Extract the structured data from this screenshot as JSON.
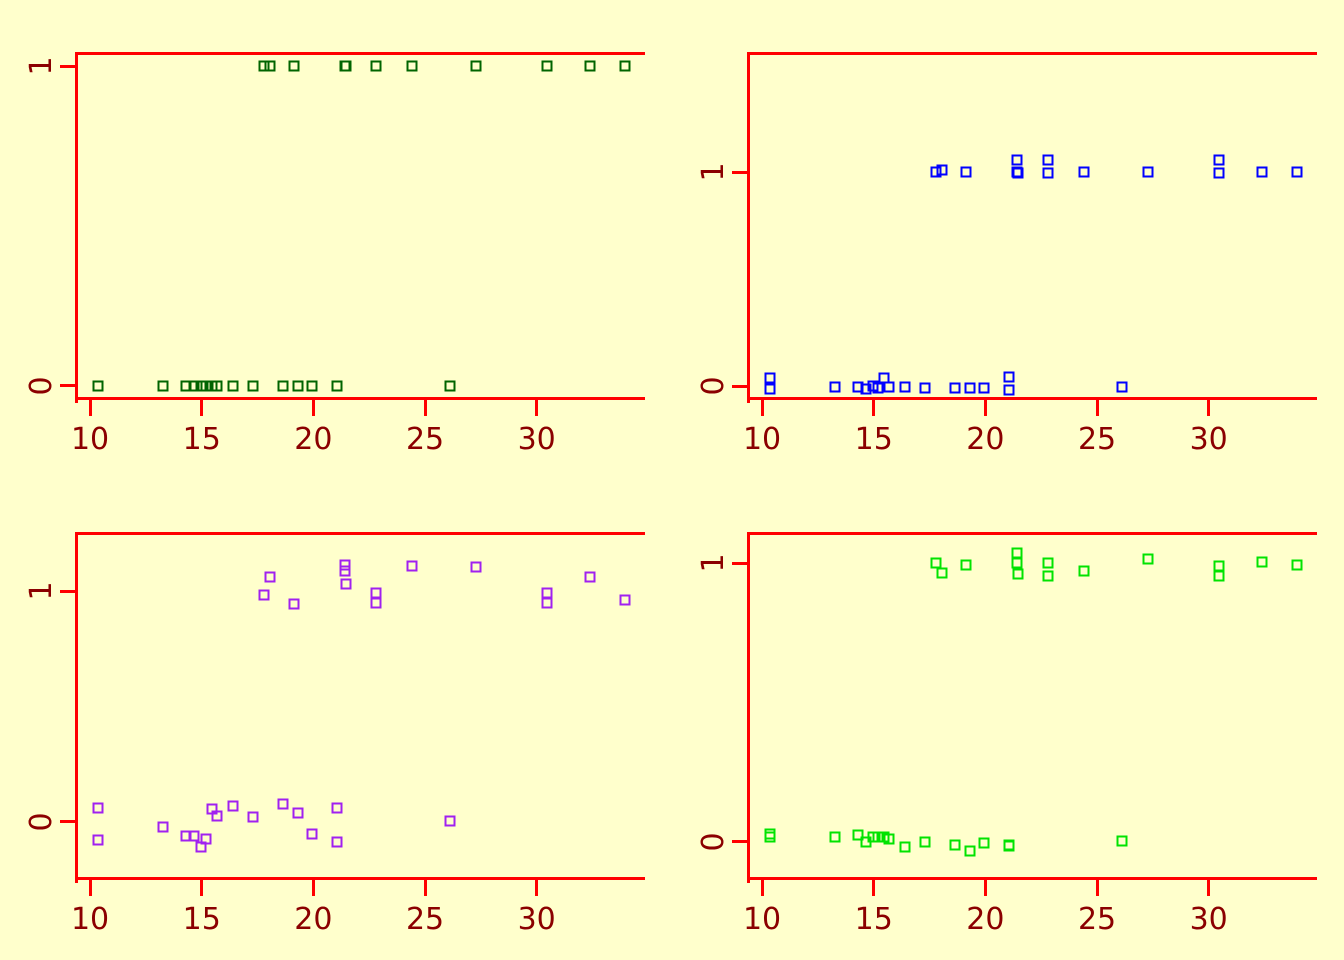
{
  "figure": {
    "background": "#FFFFCC",
    "axis_color": "#FF0000",
    "tick_label_color": "#8B0000",
    "layout": "2x2 grid of scatter panels, no titles, no legend"
  },
  "chart_data": [
    {
      "panel": "top-left",
      "type": "scatter",
      "marker": "open-square",
      "point_color": "#006400",
      "jitter": "none",
      "x_ticks": [
        10,
        15,
        20,
        25,
        30
      ],
      "y_ticks": [
        0,
        1
      ],
      "xlim": [
        9.46,
        34.85
      ],
      "ylim": [
        -0.044,
        1.044
      ],
      "grid": false,
      "points": [
        [
          10.36,
          0
        ],
        [
          10.36,
          0
        ],
        [
          13.25,
          0
        ],
        [
          14.3,
          0
        ],
        [
          14.65,
          0
        ],
        [
          14.95,
          0
        ],
        [
          15.2,
          0
        ],
        [
          15.45,
          0
        ],
        [
          15.7,
          0
        ],
        [
          16.4,
          0
        ],
        [
          17.3,
          0
        ],
        [
          18.65,
          0
        ],
        [
          19.3,
          0
        ],
        [
          19.95,
          0
        ],
        [
          21.05,
          0
        ],
        [
          21.05,
          0
        ],
        [
          26.1,
          0
        ],
        [
          17.8,
          1
        ],
        [
          18.05,
          1
        ],
        [
          19.15,
          1
        ],
        [
          21.4,
          1
        ],
        [
          21.4,
          1
        ],
        [
          21.45,
          1
        ],
        [
          22.8,
          1
        ],
        [
          22.8,
          1
        ],
        [
          24.4,
          1
        ],
        [
          27.3,
          1
        ],
        [
          30.45,
          1
        ],
        [
          30.45,
          1
        ],
        [
          32.4,
          1
        ],
        [
          33.95,
          1
        ]
      ]
    },
    {
      "panel": "top-right",
      "type": "scatter",
      "marker": "open-square",
      "point_color": "#0000FF",
      "jitter": "small-y",
      "x_ticks": [
        10,
        15,
        20,
        25,
        30
      ],
      "y_ticks": [
        0,
        1
      ],
      "xlim": [
        9.46,
        34.85
      ],
      "ylim": [
        -0.065,
        1.561
      ],
      "grid": false,
      "points": [
        [
          10.36,
          0.04
        ],
        [
          10.36,
          -0.015
        ],
        [
          13.25,
          -0.005
        ],
        [
          14.3,
          -0.005
        ],
        [
          14.65,
          -0.012
        ],
        [
          14.95,
          0.0
        ],
        [
          15.2,
          -0.01
        ],
        [
          15.45,
          0.04
        ],
        [
          15.7,
          -0.005
        ],
        [
          16.4,
          -0.005
        ],
        [
          17.3,
          -0.008
        ],
        [
          18.65,
          -0.01
        ],
        [
          19.3,
          -0.01
        ],
        [
          19.95,
          -0.01
        ],
        [
          21.05,
          0.042
        ],
        [
          21.05,
          -0.017
        ],
        [
          26.1,
          -0.005
        ],
        [
          17.8,
          1.0
        ],
        [
          18.05,
          1.008
        ],
        [
          19.15,
          1.0
        ],
        [
          21.4,
          1.055
        ],
        [
          21.4,
          1.0
        ],
        [
          21.45,
          0.995
        ],
        [
          22.8,
          1.055
        ],
        [
          22.8,
          0.995
        ],
        [
          24.4,
          1.0
        ],
        [
          27.3,
          1.0
        ],
        [
          30.45,
          1.055
        ],
        [
          30.45,
          0.995
        ],
        [
          32.4,
          1.0
        ],
        [
          33.95,
          1.0
        ]
      ]
    },
    {
      "panel": "bottom-left",
      "type": "scatter",
      "marker": "open-square",
      "point_color": "#A020F0",
      "jitter": "large-y",
      "x_ticks": [
        10,
        15,
        20,
        25,
        30
      ],
      "y_ticks": [
        0,
        1
      ],
      "xlim": [
        9.46,
        34.85
      ],
      "ylim": [
        -0.253,
        1.256
      ],
      "grid": false,
      "points": [
        [
          10.36,
          0.059
        ],
        [
          10.36,
          -0.079
        ],
        [
          13.25,
          -0.022
        ],
        [
          14.3,
          -0.063
        ],
        [
          14.65,
          -0.063
        ],
        [
          14.95,
          -0.11
        ],
        [
          15.2,
          -0.077
        ],
        [
          15.45,
          0.057
        ],
        [
          15.7,
          0.025
        ],
        [
          16.4,
          0.07
        ],
        [
          17.3,
          0.019
        ],
        [
          18.65,
          0.078
        ],
        [
          19.3,
          0.037
        ],
        [
          19.95,
          -0.054
        ],
        [
          21.05,
          0.059
        ],
        [
          21.05,
          -0.088
        ],
        [
          26.1,
          0.004
        ],
        [
          17.8,
          0.984
        ],
        [
          18.05,
          1.063
        ],
        [
          19.15,
          0.943
        ],
        [
          21.4,
          1.112
        ],
        [
          21.4,
          1.085
        ],
        [
          21.45,
          1.029
        ],
        [
          22.8,
          0.993
        ],
        [
          22.8,
          0.946
        ],
        [
          24.4,
          1.108
        ],
        [
          27.3,
          1.106
        ],
        [
          30.45,
          0.993
        ],
        [
          30.45,
          0.946
        ],
        [
          32.4,
          1.063
        ],
        [
          33.95,
          0.959
        ]
      ]
    },
    {
      "panel": "bottom-right",
      "type": "scatter",
      "marker": "open-square",
      "point_color": "#00E300",
      "jitter": "medium-y",
      "x_ticks": [
        10,
        15,
        20,
        25,
        30
      ],
      "y_ticks": [
        0,
        1
      ],
      "xlim": [
        9.46,
        34.85
      ],
      "ylim": [
        -0.138,
        1.112
      ],
      "grid": false,
      "points": [
        [
          10.36,
          0.028
        ],
        [
          10.36,
          0.018
        ],
        [
          13.25,
          0.017
        ],
        [
          14.3,
          0.023
        ],
        [
          14.65,
          0.0
        ],
        [
          14.95,
          0.017
        ],
        [
          15.2,
          0.017
        ],
        [
          15.45,
          0.015
        ],
        [
          15.7,
          0.008
        ],
        [
          16.4,
          -0.02
        ],
        [
          17.3,
          -0.003
        ],
        [
          18.65,
          -0.012
        ],
        [
          19.3,
          -0.035
        ],
        [
          19.95,
          -0.006
        ],
        [
          21.05,
          -0.017
        ],
        [
          21.05,
          -0.012
        ],
        [
          26.1,
          0.003
        ],
        [
          17.8,
          1.001
        ],
        [
          18.05,
          0.965
        ],
        [
          19.15,
          0.995
        ],
        [
          21.4,
          1.035
        ],
        [
          21.4,
          1.0
        ],
        [
          21.45,
          0.962
        ],
        [
          22.8,
          1.0
        ],
        [
          22.8,
          0.955
        ],
        [
          24.4,
          0.972
        ],
        [
          27.3,
          1.014
        ],
        [
          30.45,
          0.99
        ],
        [
          30.45,
          0.955
        ],
        [
          32.4,
          1.006
        ],
        [
          33.95,
          0.995
        ]
      ]
    }
  ]
}
